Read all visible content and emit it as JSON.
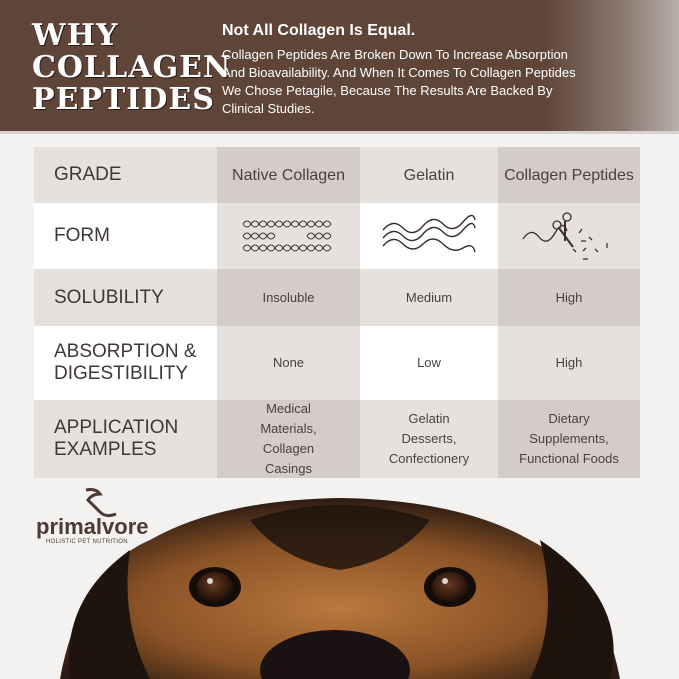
{
  "header": {
    "title_lines": [
      "WHY",
      "COLLAGEN",
      "PEPTIDES"
    ],
    "subtitle": "Not All Collagen Is Equal.",
    "body": "Collagen Peptides Are Broken Down To Increase Absorption And Bioavailability. And When It Comes To Collagen Peptides We Chose Petagile, Because The Results Are Backed By Clinical Studies.",
    "bg_color": "#5f4438"
  },
  "table": {
    "header": {
      "label": "GRADE",
      "columns": [
        "Native Collagen",
        "Gelatin",
        "Collagen Peptides"
      ]
    },
    "rows": [
      {
        "label": "FORM",
        "values": [
          "crosslinked-helix-icon",
          "wave-strands-icon",
          "cut-peptide-icon"
        ]
      },
      {
        "label": "SOLUBILITY",
        "values": [
          "Insoluble",
          "Medium",
          "High"
        ]
      },
      {
        "label": "ABSORPTION & DIGESTIBILITY",
        "values": [
          "None",
          "Low",
          "High"
        ]
      },
      {
        "label": "APPLICATION EXAMPLES",
        "values": [
          "Medical Materials, Collagen Casings",
          "Gelatin Desserts, Confectionery",
          "Dietary Supplements, Functional Foods"
        ]
      }
    ]
  },
  "logo": {
    "name": "primalvore",
    "tagline": "HOLISTIC PET NUTRITION"
  }
}
